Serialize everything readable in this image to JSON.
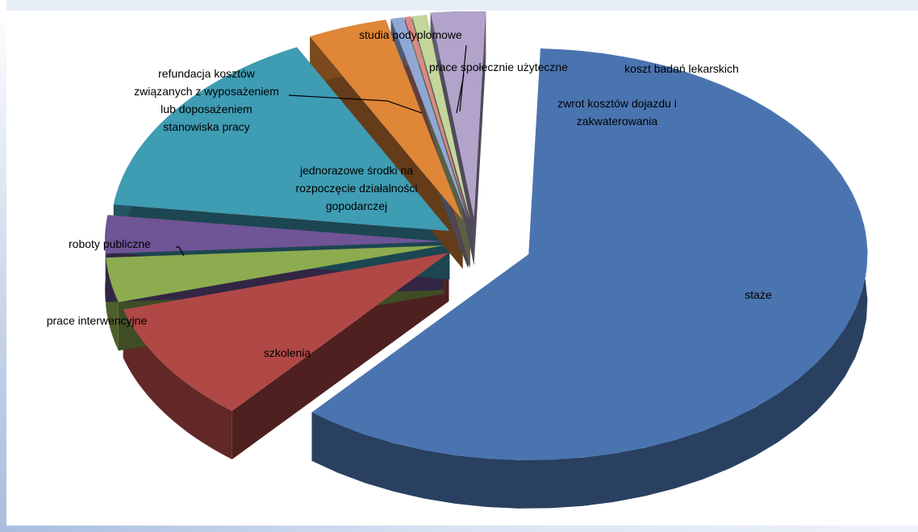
{
  "chart_data": {
    "type": "pie",
    "style": "3d-exploded",
    "title": "",
    "slices": [
      {
        "label": "staże",
        "value": 60.5,
        "color": "#4a74b0"
      },
      {
        "label": "szkolenia",
        "value": 9.5,
        "color": "#b04846"
      },
      {
        "label": "prace interwencyjne",
        "value": 3.5,
        "color": "#8dac4f"
      },
      {
        "label": "roboty publiczne",
        "value": 3.0,
        "color": "#6f5496"
      },
      {
        "label": "jednorazowe środki na rozpoczęcie działalności gopodarczej",
        "value": 15.5,
        "color": "#3e9cb3"
      },
      {
        "label": "refundacja kosztów związanych z wyposażeniem lub doposażeniem stanowiska pracy",
        "value": 3.8,
        "color": "#df8637"
      },
      {
        "label": "studia podyplomowe",
        "value": 0.6,
        "color": "#8fa8d6"
      },
      {
        "label": "prace społecznie użyteczne",
        "value": 0.3,
        "color": "#d98a87"
      },
      {
        "label": "koszt badań lekarskich",
        "value": 0.7,
        "color": "#c3d69b"
      },
      {
        "label": "zwrot kosztów dojazdu i zakwaterowania",
        "value": 2.6,
        "color": "#b1a3c9"
      }
    ]
  }
}
